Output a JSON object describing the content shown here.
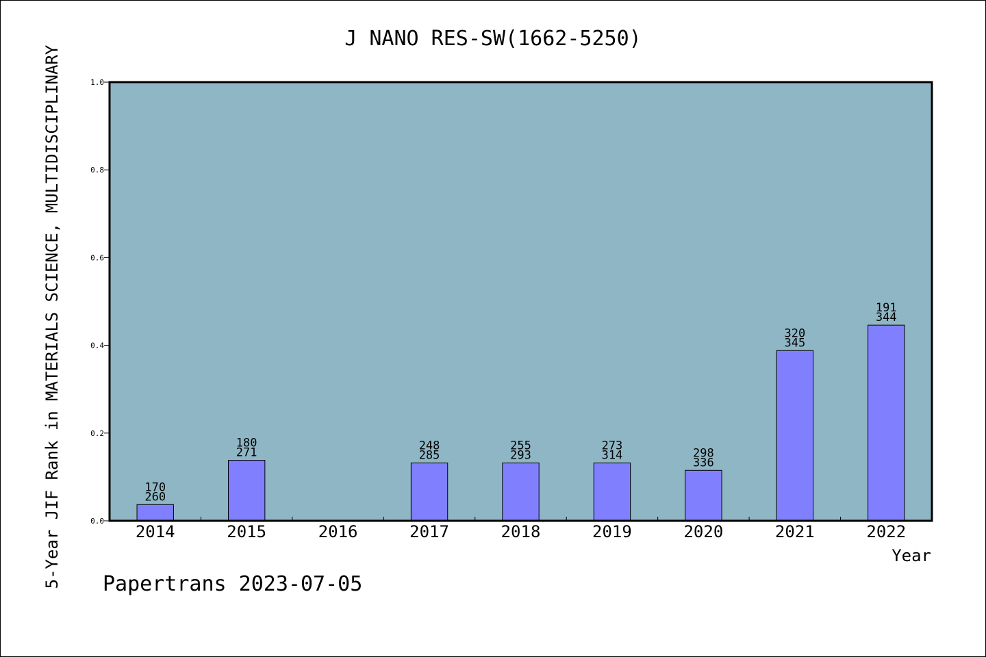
{
  "chart_data": {
    "type": "bar",
    "title": "J NANO RES-SW(1662-5250)",
    "xlabel": "Year",
    "ylabel": "5-Year JIF Rank in MATERIALS SCIENCE, MULTIDISCIPLINARY",
    "ylim": [
      0,
      1.0
    ],
    "yticks": [
      "0.0",
      "0.2",
      "0.4",
      "0.6",
      "0.8",
      "1.0"
    ],
    "categories": [
      "2014",
      "2015",
      "2016",
      "2017",
      "2018",
      "2019",
      "2020",
      "2021",
      "2022"
    ],
    "values": [
      0.037,
      0.138,
      null,
      0.132,
      0.132,
      0.132,
      0.115,
      0.388,
      0.446
    ],
    "rank_labels": [
      [
        "170",
        "260"
      ],
      [
        "180",
        "271"
      ],
      null,
      [
        "248",
        "285"
      ],
      [
        "255",
        "293"
      ],
      [
        "273",
        "314"
      ],
      [
        "298",
        "336"
      ],
      [
        "320",
        "345"
      ],
      [
        "191",
        "344"
      ]
    ],
    "colors": {
      "plot_background": "#8fb6c5",
      "bar_fill": "#8080ff",
      "bar_stroke": "#000000"
    },
    "grid": false,
    "legend": "none"
  },
  "footer": {
    "credit": "Papertrans 2023-07-05"
  }
}
